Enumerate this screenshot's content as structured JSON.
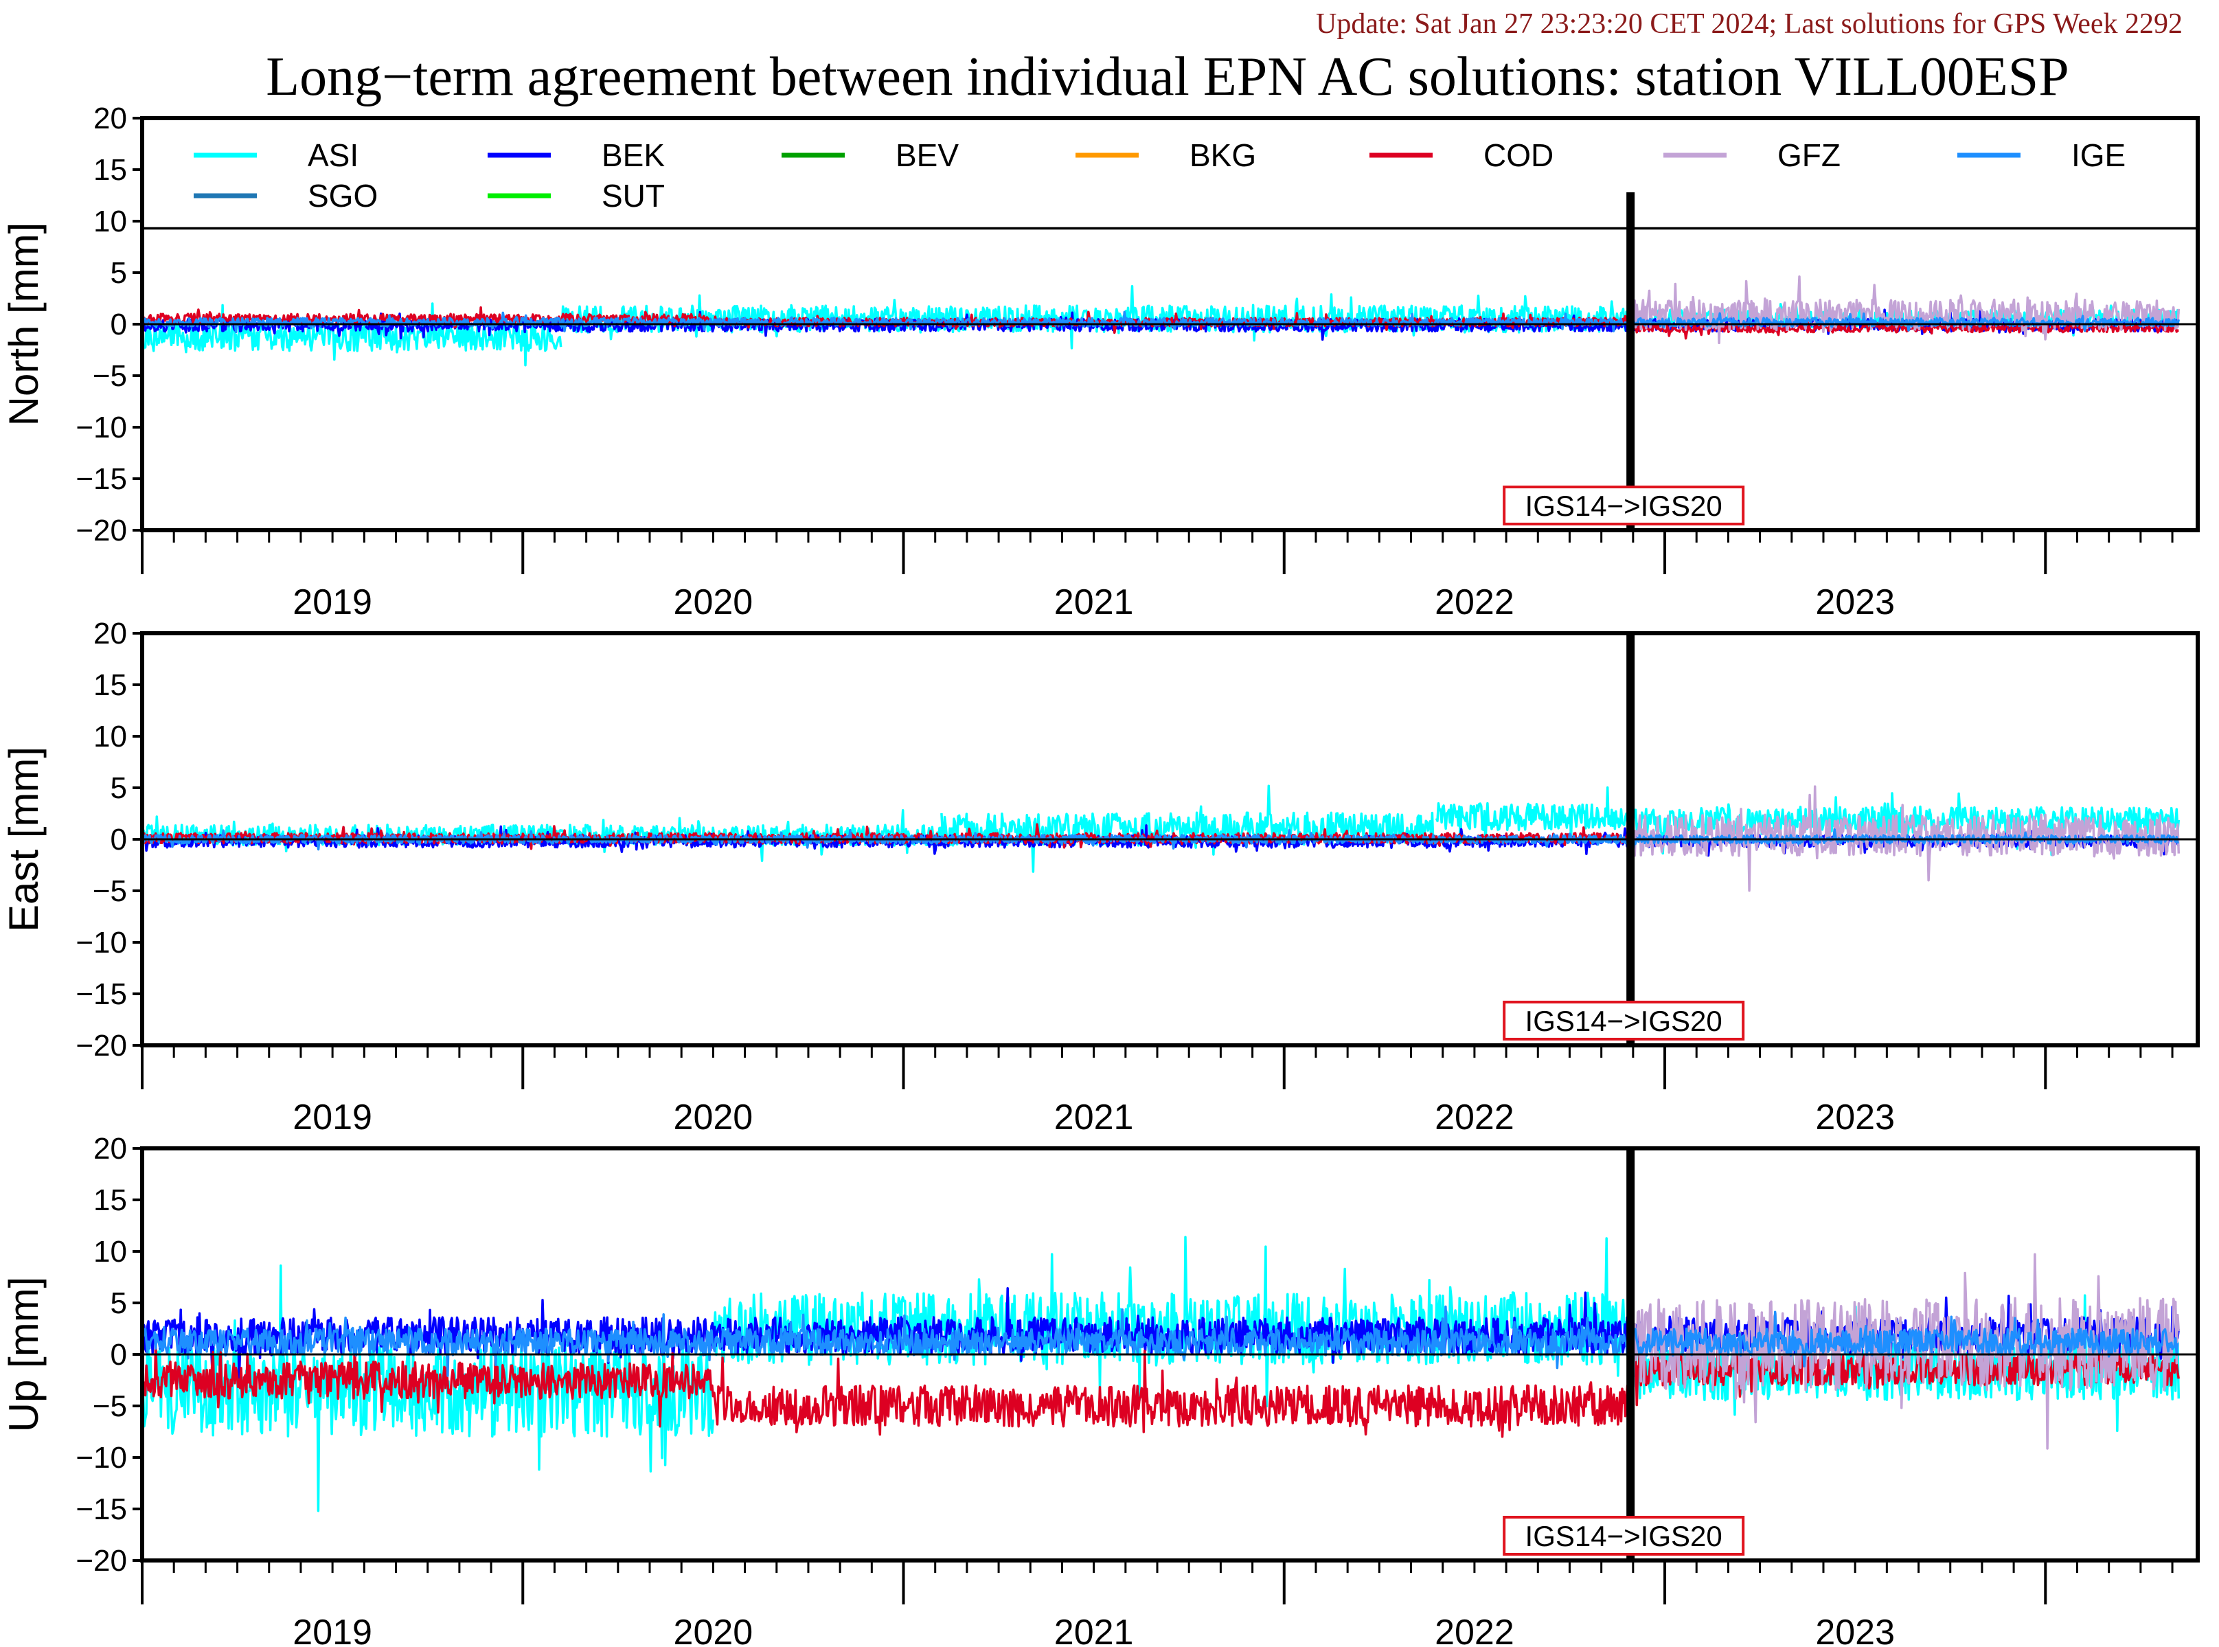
{
  "header": {
    "update_text": "Update: Sat Jan 27 23:23:20 CET 2024; Last solutions for GPS Week 2292",
    "title": "Long−term agreement between individual EPN AC solutions: station VILL00ESP"
  },
  "colors": {
    "update_text": "#8b1a1a",
    "axis": "#000000",
    "annotation_border": "#e0141e"
  },
  "legend": [
    {
      "name": "ASI",
      "color": "#00ffff"
    },
    {
      "name": "BEK",
      "color": "#0000ff"
    },
    {
      "name": "BEV",
      "color": "#00a000"
    },
    {
      "name": "BKG",
      "color": "#ff9900"
    },
    {
      "name": "COD",
      "color": "#dd0022"
    },
    {
      "name": "GFZ",
      "color": "#c3a3d6"
    },
    {
      "name": "IGE",
      "color": "#1e8fff"
    },
    {
      "name": "SGO",
      "color": "#1f77b4"
    },
    {
      "name": "SUT",
      "color": "#00ee00"
    }
  ],
  "chart_data": [
    {
      "type": "line",
      "ylabel": "North [mm]",
      "ylim": [
        -20,
        20
      ],
      "yticks": [
        -20,
        -15,
        -10,
        -5,
        0,
        5,
        10,
        15,
        20
      ],
      "xlim": [
        2018.5,
        2023.9
      ],
      "year_labels": [
        {
          "label": "2019",
          "x": 2019.0
        },
        {
          "label": "2020",
          "x": 2020.0
        },
        {
          "label": "2021",
          "x": 2021.0
        },
        {
          "label": "2022",
          "x": 2022.0
        },
        {
          "label": "2023",
          "x": 2023.0
        }
      ],
      "zero_line": 0,
      "reference_line": 9.3,
      "frame_change": {
        "x": 2022.41,
        "label": "IGS14−>IGS20"
      },
      "series": [
        {
          "name": "ASI",
          "segments": [
            {
              "x0": 2018.5,
              "x1": 2019.6,
              "mean": -1.2,
              "amp": 1.4
            },
            {
              "x0": 2019.6,
              "x1": 2022.41,
              "mean": 0.5,
              "amp": 1.3
            },
            {
              "x0": 2022.41,
              "x1": 2023.85,
              "mean": 0.5,
              "amp": 0.9
            }
          ]
        },
        {
          "name": "BEK",
          "segments": [
            {
              "x0": 2018.5,
              "x1": 2023.85,
              "mean": -0.1,
              "amp": 0.6
            }
          ]
        },
        {
          "name": "COD",
          "segments": [
            {
              "x0": 2018.5,
              "x1": 2020.0,
              "mean": 0.5,
              "amp": 0.5
            },
            {
              "x0": 2020.0,
              "x1": 2022.41,
              "mean": 0.2,
              "amp": 0.4
            },
            {
              "x0": 2022.41,
              "x1": 2023.85,
              "mean": -0.4,
              "amp": 0.4
            }
          ]
        },
        {
          "name": "GFZ",
          "segments": [
            {
              "x0": 2022.41,
              "x1": 2023.85,
              "mean": 0.9,
              "amp": 1.5
            }
          ]
        },
        {
          "name": "IGE",
          "segments": [
            {
              "x0": 2018.5,
              "x1": 2023.85,
              "mean": 0.2,
              "amp": 0.4
            }
          ]
        }
      ]
    },
    {
      "type": "line",
      "ylabel": "East [mm]",
      "ylim": [
        -20,
        20
      ],
      "yticks": [
        -20,
        -15,
        -10,
        -5,
        0,
        5,
        10,
        15,
        20
      ],
      "xlim": [
        2018.5,
        2023.9
      ],
      "year_labels": [
        {
          "label": "2019",
          "x": 2019.0
        },
        {
          "label": "2020",
          "x": 2020.0
        },
        {
          "label": "2021",
          "x": 2021.0
        },
        {
          "label": "2022",
          "x": 2022.0
        },
        {
          "label": "2023",
          "x": 2023.0
        }
      ],
      "zero_line": 0,
      "frame_change": {
        "x": 2022.41,
        "label": "IGS14−>IGS20"
      },
      "series": [
        {
          "name": "ASI",
          "segments": [
            {
              "x0": 2018.5,
              "x1": 2020.6,
              "mean": 0.4,
              "amp": 1.0
            },
            {
              "x0": 2020.6,
              "x1": 2021.9,
              "mean": 1.0,
              "amp": 1.6
            },
            {
              "x0": 2021.9,
              "x1": 2022.41,
              "mean": 2.2,
              "amp": 1.3
            },
            {
              "x0": 2022.41,
              "x1": 2023.85,
              "mean": 1.8,
              "amp": 1.3
            }
          ]
        },
        {
          "name": "BEK",
          "segments": [
            {
              "x0": 2018.5,
              "x1": 2023.85,
              "mean": -0.2,
              "amp": 0.6
            }
          ]
        },
        {
          "name": "COD",
          "segments": [
            {
              "x0": 2018.5,
              "x1": 2022.41,
              "mean": 0.1,
              "amp": 0.5
            }
          ]
        },
        {
          "name": "GFZ",
          "segments": [
            {
              "x0": 2022.41,
              "x1": 2023.85,
              "mean": 0.4,
              "amp": 2.0
            }
          ]
        },
        {
          "name": "IGE",
          "segments": [
            {
              "x0": 2018.5,
              "x1": 2023.85,
              "mean": 0.0,
              "amp": 0.4
            }
          ]
        }
      ]
    },
    {
      "type": "line",
      "ylabel": "Up [mm]",
      "ylim": [
        -20,
        20
      ],
      "yticks": [
        -20,
        -15,
        -10,
        -5,
        0,
        5,
        10,
        15,
        20
      ],
      "xlim": [
        2018.5,
        2023.9
      ],
      "year_labels": [
        {
          "label": "2019",
          "x": 2019.0
        },
        {
          "label": "2020",
          "x": 2020.0
        },
        {
          "label": "2021",
          "x": 2021.0
        },
        {
          "label": "2022",
          "x": 2022.0
        },
        {
          "label": "2023",
          "x": 2023.0
        }
      ],
      "zero_line": 0,
      "frame_change": {
        "x": 2022.41,
        "label": "IGS14−>IGS20"
      },
      "series": [
        {
          "name": "ASI",
          "segments": [
            {
              "x0": 2018.5,
              "x1": 2020.0,
              "mean": -3.5,
              "amp": 4.5
            },
            {
              "x0": 2020.0,
              "x1": 2022.41,
              "mean": 2.5,
              "amp": 3.5
            },
            {
              "x0": 2022.41,
              "x1": 2023.85,
              "mean": -1.5,
              "amp": 3.0
            }
          ]
        },
        {
          "name": "BEK",
          "segments": [
            {
              "x0": 2018.5,
              "x1": 2023.85,
              "mean": 1.8,
              "amp": 1.8
            }
          ]
        },
        {
          "name": "COD",
          "segments": [
            {
              "x0": 2018.5,
              "x1": 2020.0,
              "mean": -2.5,
              "amp": 1.8
            },
            {
              "x0": 2020.0,
              "x1": 2022.41,
              "mean": -5.0,
              "amp": 2.0
            },
            {
              "x0": 2022.41,
              "x1": 2023.85,
              "mean": -1.5,
              "amp": 1.5
            }
          ]
        },
        {
          "name": "GFZ",
          "segments": [
            {
              "x0": 2022.41,
              "x1": 2023.85,
              "mean": 1.0,
              "amp": 4.5
            }
          ]
        },
        {
          "name": "IGE",
          "segments": [
            {
              "x0": 2018.5,
              "x1": 2023.85,
              "mean": 1.2,
              "amp": 1.3
            }
          ]
        }
      ]
    }
  ]
}
